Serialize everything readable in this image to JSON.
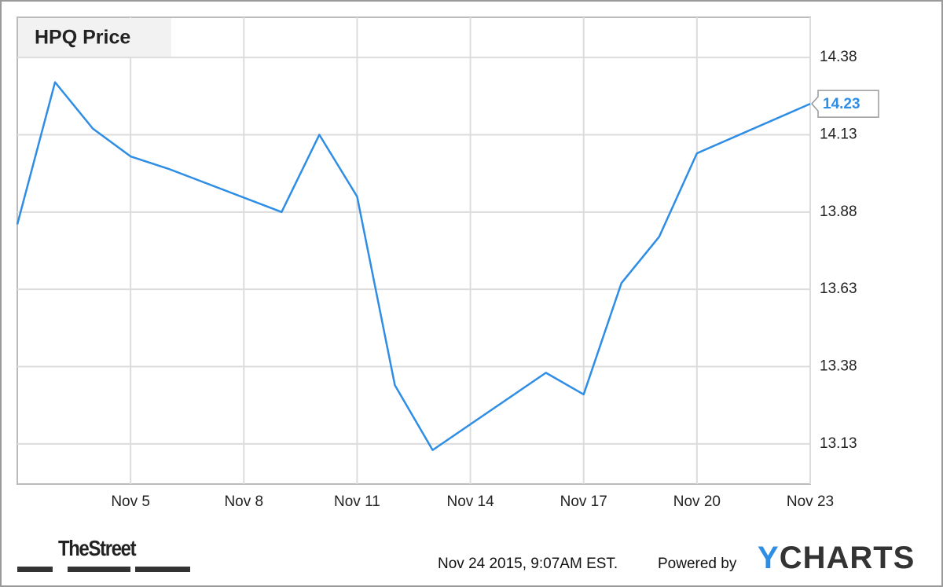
{
  "chart_data": {
    "type": "line",
    "title": "HPQ Price",
    "x": [
      "Nov 2",
      "Nov 3",
      "Nov 4",
      "Nov 5",
      "Nov 6",
      "Nov 9",
      "Nov 10",
      "Nov 11",
      "Nov 12",
      "Nov 13",
      "Nov 16",
      "Nov 17",
      "Nov 18",
      "Nov 19",
      "Nov 20",
      "Nov 23"
    ],
    "series": [
      {
        "name": "HPQ Price",
        "color": "#2e8de4",
        "values": [
          13.84,
          14.3,
          14.15,
          14.06,
          14.02,
          13.88,
          14.13,
          13.93,
          13.32,
          13.11,
          13.36,
          13.29,
          13.65,
          13.8,
          14.07,
          14.23
        ]
      }
    ],
    "xlim": [
      "Nov 2",
      "Nov 23"
    ],
    "xticks": [
      "Nov 5",
      "Nov 8",
      "Nov 11",
      "Nov 14",
      "Nov 17",
      "Nov 20",
      "Nov 23"
    ],
    "ylim": [
      13.0,
      14.51
    ],
    "yticks": [
      13.13,
      13.38,
      13.63,
      13.88,
      14.13,
      14.38
    ],
    "grid": true,
    "timestamp": "Nov 24 2015, 9:07AM EST.",
    "powered_by": "Powered by",
    "brand": "YCHARTS",
    "publisher": "TheStreet"
  }
}
